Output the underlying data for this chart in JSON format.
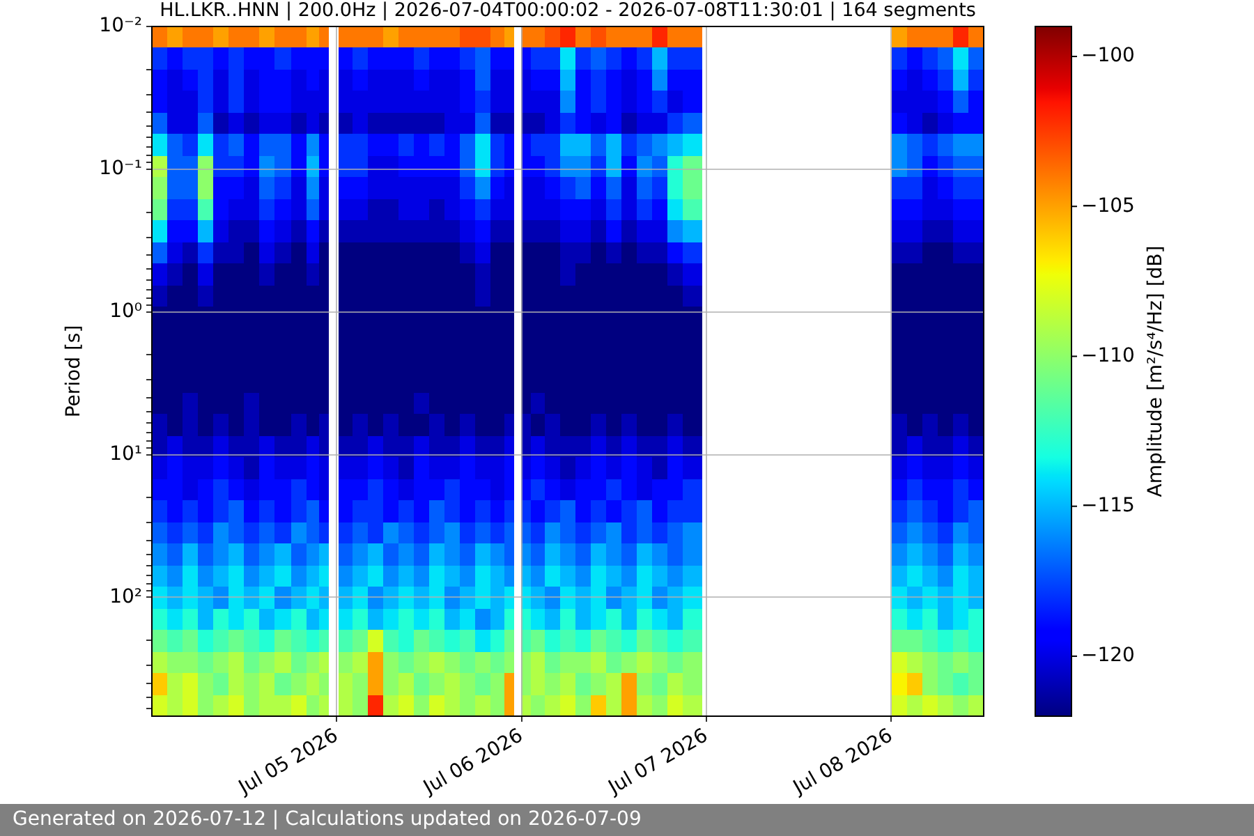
{
  "chart_data": {
    "type": "heatmap",
    "title": "HL.LKR..HNN | 200.0Hz | 2026-07-04T00:00:02 - 2026-07-08T11:30:01 | 164 segments",
    "ylabel": "Period [s]",
    "clabel": "Amplitude [m²/s⁴/Hz] [dB]",
    "annotations": [
      "Generated on 2026-07-12 | Calculations updated on 2026-07-09"
    ],
    "x": [
      "2026-07-04T01:00",
      "2026-07-04T03:00",
      "2026-07-04T05:00",
      "2026-07-04T07:00",
      "2026-07-04T09:00",
      "2026-07-04T11:00",
      "2026-07-04T13:00",
      "2026-07-04T15:00",
      "2026-07-04T17:00",
      "2026-07-04T19:00",
      "2026-07-04T21:00",
      "2026-07-04T22:30",
      "2026-07-04T23:30",
      "2026-07-05T01:00",
      "2026-07-05T03:00",
      "2026-07-05T05:00",
      "2026-07-05T07:00",
      "2026-07-05T09:00",
      "2026-07-05T11:00",
      "2026-07-05T13:00",
      "2026-07-05T15:00",
      "2026-07-05T17:00",
      "2026-07-05T19:00",
      "2026-07-05T21:00",
      "2026-07-05T22:30",
      "2026-07-05T23:30",
      "2026-07-06T00:30",
      "2026-07-06T02:00",
      "2026-07-06T04:00",
      "2026-07-06T06:00",
      "2026-07-06T08:00",
      "2026-07-06T10:00",
      "2026-07-06T12:00",
      "2026-07-06T14:00",
      "2026-07-06T16:00",
      "2026-07-06T18:00",
      "2026-07-06T20:00",
      "2026-07-06T22:00",
      "2026-07-07T01:00",
      "2026-07-07T03:00",
      "2026-07-07T05:00",
      "2026-07-07T07:00",
      "2026-07-07T09:00",
      "2026-07-07T11:00",
      "2026-07-07T13:00",
      "2026-07-07T15:00",
      "2026-07-07T17:00",
      "2026-07-07T19:00",
      "2026-07-07T21:00",
      "2026-07-07T23:00",
      "2026-07-08T01:00",
      "2026-07-08T03:00",
      "2026-07-08T05:00",
      "2026-07-08T07:00",
      "2026-07-08T09:00",
      "2026-07-08T11:00"
    ],
    "xlim": [
      "2026-07-04T00:00",
      "2026-07-08T12:00"
    ],
    "xticks": [
      {
        "value": "2026-07-05",
        "label": "Jul 05 2026"
      },
      {
        "value": "2026-07-06",
        "label": "Jul 06 2026"
      },
      {
        "value": "2026-07-07",
        "label": "Jul 07 2026"
      },
      {
        "value": "2026-07-08",
        "label": "Jul 08 2026"
      }
    ],
    "ylim": [
      680,
      0.01
    ],
    "yticks": [
      {
        "value": 0.01,
        "label": "10⁻²"
      },
      {
        "value": 0.02,
        "label": null
      },
      {
        "value": 0.03,
        "label": null
      },
      {
        "value": 0.04,
        "label": null
      },
      {
        "value": 0.05,
        "label": null
      },
      {
        "value": 0.06,
        "label": null
      },
      {
        "value": 0.07,
        "label": null
      },
      {
        "value": 0.08,
        "label": null
      },
      {
        "value": 0.09,
        "label": null
      },
      {
        "value": 0.1,
        "label": "10⁻¹"
      },
      {
        "value": 0.2,
        "label": null
      },
      {
        "value": 0.3,
        "label": null
      },
      {
        "value": 0.4,
        "label": null
      },
      {
        "value": 0.5,
        "label": null
      },
      {
        "value": 0.6,
        "label": null
      },
      {
        "value": 0.7,
        "label": null
      },
      {
        "value": 0.8,
        "label": null
      },
      {
        "value": 0.9,
        "label": null
      },
      {
        "value": 1,
        "label": "10⁰"
      },
      {
        "value": 2,
        "label": null
      },
      {
        "value": 3,
        "label": null
      },
      {
        "value": 4,
        "label": null
      },
      {
        "value": 5,
        "label": null
      },
      {
        "value": 6,
        "label": null
      },
      {
        "value": 7,
        "label": null
      },
      {
        "value": 8,
        "label": null
      },
      {
        "value": 9,
        "label": null
      },
      {
        "value": 10,
        "label": "10¹"
      },
      {
        "value": 20,
        "label": null
      },
      {
        "value": 30,
        "label": null
      },
      {
        "value": 40,
        "label": null
      },
      {
        "value": 50,
        "label": null
      },
      {
        "value": 60,
        "label": null
      },
      {
        "value": 70,
        "label": null
      },
      {
        "value": 80,
        "label": null
      },
      {
        "value": 90,
        "label": null
      },
      {
        "value": 100,
        "label": "10²"
      },
      {
        "value": 200,
        "label": null
      },
      {
        "value": 300,
        "label": null
      },
      {
        "value": 400,
        "label": null
      },
      {
        "value": 500,
        "label": null
      },
      {
        "value": 600,
        "label": null
      }
    ],
    "log": "y",
    "grid": true,
    "clim": [
      -122,
      -99
    ],
    "cticks": [
      -120,
      -115,
      -110,
      -105,
      -100
    ],
    "cells": [
      [
        -104,
        -105,
        -104,
        -104,
        -105,
        -104,
        -104,
        -105,
        -104,
        -104,
        -105,
        -104,
        null,
        -104,
        -104,
        -104,
        -105,
        -104,
        -104,
        -104,
        -104,
        -103,
        -103,
        -104,
        -105,
        null,
        -104,
        -104,
        -103,
        -102,
        -104,
        -103,
        -104,
        -104,
        -104,
        -102,
        -104,
        -104,
        null,
        null,
        null,
        null,
        null,
        null,
        null,
        null,
        null,
        null,
        null,
        null,
        -105,
        -104,
        -104,
        -104,
        -102,
        -104
      ],
      [
        -118,
        -119,
        -118,
        -118,
        -119,
        -118,
        -119,
        -119,
        -118,
        -119,
        -119,
        -119,
        null,
        -119,
        -118,
        -119,
        -119,
        -119,
        -118,
        -119,
        -119,
        -118,
        -117,
        -119,
        -119,
        null,
        -119,
        -118,
        -118,
        -114,
        -118,
        -117,
        -118,
        -119,
        -118,
        -115,
        -118,
        -118,
        null,
        null,
        null,
        null,
        null,
        null,
        null,
        null,
        null,
        null,
        null,
        null,
        -118,
        -119,
        -118,
        -117,
        -114,
        -117
      ],
      [
        -119,
        -120,
        -119,
        -118,
        -120,
        -118,
        -120,
        -119,
        -119,
        -120,
        -119,
        -120,
        null,
        -120,
        -119,
        -120,
        -120,
        -120,
        -119,
        -120,
        -120,
        -119,
        -117,
        -120,
        -120,
        null,
        -120,
        -119,
        -119,
        -115,
        -119,
        -118,
        -119,
        -120,
        -119,
        -116,
        -119,
        -119,
        null,
        null,
        null,
        null,
        null,
        null,
        null,
        null,
        null,
        null,
        null,
        null,
        -119,
        -120,
        -119,
        -118,
        -115,
        -118
      ],
      [
        -119,
        -120,
        -120,
        -118,
        -120,
        -118,
        -120,
        -119,
        -119,
        -120,
        -120,
        -120,
        null,
        -120,
        -120,
        -120,
        -120,
        -120,
        -120,
        -120,
        -120,
        -119,
        -118,
        -120,
        -120,
        null,
        -120,
        -120,
        -120,
        -116,
        -119,
        -118,
        -119,
        -120,
        -119,
        -118,
        -120,
        -119,
        null,
        null,
        null,
        null,
        null,
        null,
        null,
        null,
        null,
        null,
        null,
        null,
        -120,
        -120,
        -120,
        -119,
        -117,
        -119
      ],
      [
        -117,
        -120,
        -120,
        -117,
        -121,
        -120,
        -121,
        -120,
        -120,
        -121,
        -120,
        -121,
        null,
        -121,
        -120,
        -121,
        -121,
        -121,
        -121,
        -121,
        -120,
        -120,
        -117,
        -121,
        -121,
        null,
        -121,
        -121,
        -120,
        -118,
        -119,
        -120,
        -119,
        -121,
        -120,
        -120,
        -118,
        -117,
        null,
        null,
        null,
        null,
        null,
        null,
        null,
        null,
        null,
        null,
        null,
        null,
        -119,
        -120,
        -121,
        -120,
        -119,
        -119
      ],
      [
        -114,
        -117,
        -118,
        -114,
        -118,
        -117,
        -119,
        -117,
        -117,
        -119,
        -116,
        -119,
        null,
        -118,
        -118,
        -119,
        -119,
        -118,
        -119,
        -118,
        -119,
        -117,
        -114,
        -118,
        -119,
        null,
        -119,
        -118,
        -118,
        -115,
        -115,
        -117,
        -115,
        -118,
        -117,
        -116,
        -115,
        -114,
        null,
        null,
        null,
        null,
        null,
        null,
        null,
        null,
        null,
        null,
        null,
        null,
        -116,
        -117,
        -118,
        -117,
        -116,
        -116
      ],
      [
        -109,
        -117,
        -117,
        -110,
        -118,
        -118,
        -119,
        -116,
        -117,
        -119,
        -115,
        -119,
        null,
        -118,
        -118,
        -120,
        -120,
        -119,
        -119,
        -119,
        -119,
        -117,
        -114,
        -118,
        -119,
        null,
        -119,
        -119,
        -118,
        -116,
        -116,
        -118,
        -115,
        -119,
        -116,
        -117,
        -113,
        -111,
        null,
        null,
        null,
        null,
        null,
        null,
        null,
        null,
        null,
        null,
        null,
        null,
        -116,
        -117,
        -119,
        -118,
        -117,
        -117
      ],
      [
        -110,
        -117,
        -117,
        -110,
        -119,
        -119,
        -120,
        -117,
        -118,
        -120,
        -116,
        -120,
        null,
        -119,
        -119,
        -120,
        -120,
        -120,
        -120,
        -120,
        -120,
        -118,
        -116,
        -119,
        -120,
        null,
        -120,
        -120,
        -119,
        -118,
        -117,
        -119,
        -117,
        -120,
        -117,
        -118,
        -113,
        -111,
        null,
        null,
        null,
        null,
        null,
        null,
        null,
        null,
        null,
        null,
        null,
        null,
        -118,
        -118,
        -120,
        -119,
        -118,
        -118
      ],
      [
        -111,
        -118,
        -118,
        -112,
        -119,
        -120,
        -120,
        -118,
        -119,
        -120,
        -117,
        -120,
        null,
        -120,
        -120,
        -121,
        -121,
        -120,
        -120,
        -121,
        -120,
        -119,
        -118,
        -120,
        -120,
        null,
        -120,
        -120,
        -120,
        -119,
        -119,
        -120,
        -118,
        -120,
        -118,
        -119,
        -114,
        -112,
        null,
        null,
        null,
        null,
        null,
        null,
        null,
        null,
        null,
        null,
        null,
        null,
        -119,
        -119,
        -120,
        -120,
        -119,
        -119
      ],
      [
        -114,
        -119,
        -119,
        -115,
        -120,
        -121,
        -121,
        -119,
        -120,
        -121,
        -119,
        -121,
        null,
        -121,
        -121,
        -121,
        -121,
        -121,
        -121,
        -121,
        -121,
        -120,
        -119,
        -121,
        -121,
        null,
        -121,
        -121,
        -121,
        -120,
        -120,
        -121,
        -119,
        -121,
        -120,
        -120,
        -116,
        -115,
        null,
        null,
        null,
        null,
        null,
        null,
        null,
        null,
        null,
        null,
        null,
        null,
        -120,
        -120,
        -121,
        -121,
        -120,
        -120
      ],
      [
        -117,
        -120,
        -121,
        -118,
        -121,
        -121,
        -122,
        -120,
        -121,
        -122,
        -120,
        -122,
        null,
        -122,
        -122,
        -122,
        -122,
        -122,
        -122,
        -122,
        -122,
        -121,
        -120,
        -122,
        -122,
        null,
        -122,
        -122,
        -122,
        -121,
        -121,
        -122,
        -121,
        -122,
        -121,
        -121,
        -119,
        -118,
        null,
        null,
        null,
        null,
        null,
        null,
        null,
        null,
        null,
        null,
        null,
        null,
        -121,
        -121,
        -122,
        -122,
        -121,
        -121
      ],
      [
        -120,
        -121,
        -122,
        -120,
        -122,
        -122,
        -122,
        -121,
        -122,
        -122,
        -121,
        -122,
        null,
        -122,
        -122,
        -122,
        -122,
        -122,
        -122,
        -122,
        -122,
        -122,
        -121,
        -122,
        -122,
        null,
        -122,
        -122,
        -122,
        -121,
        -122,
        -122,
        -122,
        -122,
        -122,
        -122,
        -121,
        -120,
        null,
        null,
        null,
        null,
        null,
        null,
        null,
        null,
        null,
        null,
        null,
        null,
        -122,
        -122,
        -122,
        -122,
        -122,
        -122
      ],
      [
        -121,
        -122,
        -122,
        -121,
        -122,
        -122,
        -122,
        -122,
        -122,
        -122,
        -122,
        -122,
        null,
        -122,
        -122,
        -122,
        -122,
        -122,
        -122,
        -122,
        -122,
        -122,
        -121,
        -122,
        -122,
        null,
        -122,
        -122,
        -122,
        -122,
        -122,
        -122,
        -122,
        -122,
        -122,
        -122,
        -122,
        -121,
        null,
        null,
        null,
        null,
        null,
        null,
        null,
        null,
        null,
        null,
        null,
        null,
        -122,
        -122,
        -122,
        -122,
        -122,
        -122
      ],
      [
        -122,
        -122,
        -122,
        -122,
        -122,
        -122,
        -122,
        -122,
        -122,
        -122,
        -122,
        -122,
        null,
        -122,
        -122,
        -122,
        -122,
        -122,
        -122,
        -122,
        -122,
        -122,
        -122,
        -122,
        -122,
        null,
        -122,
        -122,
        -122,
        -122,
        -122,
        -122,
        -122,
        -122,
        -122,
        -122,
        -122,
        -122,
        null,
        null,
        null,
        null,
        null,
        null,
        null,
        null,
        null,
        null,
        null,
        null,
        -122,
        -122,
        -122,
        -122,
        -122,
        -122
      ],
      [
        -122,
        -122,
        -122,
        -122,
        -122,
        -122,
        -122,
        -122,
        -122,
        -122,
        -122,
        -122,
        null,
        -122,
        -122,
        -122,
        -122,
        -122,
        -122,
        -122,
        -122,
        -122,
        -122,
        -122,
        -122,
        null,
        -122,
        -122,
        -122,
        -122,
        -122,
        -122,
        -122,
        -122,
        -122,
        -122,
        -122,
        -122,
        null,
        null,
        null,
        null,
        null,
        null,
        null,
        null,
        null,
        null,
        null,
        null,
        -122,
        -122,
        -122,
        -122,
        -122,
        -122
      ],
      [
        -122,
        -122,
        -122,
        -122,
        -122,
        -122,
        -122,
        -122,
        -122,
        -122,
        -122,
        -122,
        null,
        -122,
        -122,
        -122,
        -122,
        -122,
        -122,
        -122,
        -122,
        -122,
        -122,
        -122,
        -122,
        null,
        -122,
        -122,
        -122,
        -122,
        -122,
        -122,
        -122,
        -122,
        -122,
        -122,
        -122,
        -122,
        null,
        null,
        null,
        null,
        null,
        null,
        null,
        null,
        null,
        null,
        null,
        null,
        -122,
        -122,
        -122,
        -122,
        -122,
        -122
      ],
      [
        -122,
        -122,
        -122,
        -122,
        -122,
        -122,
        -122,
        -122,
        -122,
        -122,
        -122,
        -122,
        null,
        -122,
        -122,
        -122,
        -122,
        -122,
        -122,
        -122,
        -122,
        -122,
        -122,
        -122,
        -122,
        null,
        -122,
        -122,
        -122,
        -122,
        -122,
        -122,
        -122,
        -122,
        -122,
        -122,
        -122,
        -122,
        null,
        null,
        null,
        null,
        null,
        null,
        null,
        null,
        null,
        null,
        null,
        null,
        -122,
        -122,
        -122,
        -122,
        -122,
        -122
      ],
      [
        -122,
        -122,
        -121,
        -122,
        -122,
        -122,
        -121,
        -122,
        -122,
        -122,
        -122,
        -122,
        null,
        -122,
        -122,
        -122,
        -122,
        -122,
        -121,
        -122,
        -122,
        -122,
        -122,
        -122,
        -122,
        null,
        -122,
        -121,
        -122,
        -122,
        -122,
        -122,
        -122,
        -122,
        -122,
        -122,
        -122,
        -122,
        null,
        null,
        null,
        null,
        null,
        null,
        null,
        null,
        null,
        null,
        null,
        null,
        -122,
        -122,
        -122,
        -122,
        -122,
        -122
      ],
      [
        -121,
        -122,
        -121,
        -122,
        -121,
        -122,
        -121,
        -122,
        -122,
        -121,
        -122,
        -121,
        null,
        -122,
        -121,
        -122,
        -121,
        -122,
        -122,
        -121,
        -122,
        -121,
        -122,
        -122,
        -121,
        null,
        -121,
        -122,
        -121,
        -122,
        -122,
        -121,
        -122,
        -121,
        -122,
        -122,
        -121,
        -122,
        null,
        null,
        null,
        null,
        null,
        null,
        null,
        null,
        null,
        null,
        null,
        null,
        -121,
        -122,
        -121,
        -122,
        -121,
        -122
      ],
      [
        -121,
        -120,
        -121,
        -121,
        -120,
        -121,
        -121,
        -120,
        -121,
        -121,
        -120,
        -121,
        null,
        -121,
        -121,
        -120,
        -121,
        -121,
        -120,
        -121,
        -121,
        -120,
        -121,
        -121,
        -120,
        null,
        -121,
        -120,
        -121,
        -121,
        -121,
        -120,
        -121,
        -120,
        -121,
        -121,
        -120,
        -121,
        null,
        null,
        null,
        null,
        null,
        null,
        null,
        null,
        null,
        null,
        null,
        null,
        -121,
        -120,
        -121,
        -121,
        -120,
        -121
      ],
      [
        -120,
        -119,
        -120,
        -120,
        -119,
        -120,
        -121,
        -119,
        -120,
        -120,
        -119,
        -120,
        null,
        -120,
        -120,
        -119,
        -120,
        -121,
        -119,
        -120,
        -120,
        -119,
        -120,
        -120,
        -119,
        null,
        -120,
        -119,
        -120,
        -121,
        -120,
        -119,
        -120,
        -119,
        -120,
        -121,
        -119,
        -120,
        null,
        null,
        null,
        null,
        null,
        null,
        null,
        null,
        null,
        null,
        null,
        null,
        -120,
        -119,
        -120,
        -120,
        -119,
        -120
      ],
      [
        -119,
        -119,
        -120,
        -119,
        -118,
        -119,
        -120,
        -119,
        -119,
        -118,
        -119,
        -120,
        null,
        -119,
        -119,
        -118,
        -119,
        -120,
        -119,
        -119,
        -118,
        -119,
        -119,
        -120,
        -119,
        null,
        -119,
        -118,
        -119,
        -120,
        -119,
        -119,
        -118,
        -119,
        -120,
        -119,
        -119,
        -118,
        null,
        null,
        null,
        null,
        null,
        null,
        null,
        null,
        null,
        null,
        null,
        null,
        -119,
        -118,
        -119,
        -119,
        -118,
        -119
      ],
      [
        -118,
        -119,
        -118,
        -119,
        -118,
        -117,
        -119,
        -118,
        -119,
        -118,
        -117,
        -119,
        null,
        -119,
        -118,
        -118,
        -119,
        -118,
        -119,
        -117,
        -118,
        -119,
        -118,
        -119,
        -118,
        null,
        -118,
        -119,
        -118,
        -117,
        -119,
        -118,
        -119,
        -118,
        -117,
        -119,
        -118,
        -118,
        null,
        null,
        null,
        null,
        null,
        null,
        null,
        null,
        null,
        null,
        null,
        null,
        -118,
        -117,
        -118,
        -119,
        -118,
        -117
      ],
      [
        -117,
        -118,
        -117,
        -118,
        -116,
        -117,
        -118,
        -117,
        -118,
        -116,
        -117,
        -118,
        null,
        -118,
        -117,
        -118,
        -116,
        -117,
        -118,
        -117,
        -116,
        -118,
        -117,
        -118,
        -117,
        null,
        -117,
        -118,
        -116,
        -117,
        -118,
        -117,
        -116,
        -118,
        -117,
        -118,
        -117,
        -116,
        null,
        null,
        null,
        null,
        null,
        null,
        null,
        null,
        null,
        null,
        null,
        null,
        -117,
        -116,
        -117,
        -118,
        -116,
        -117
      ],
      [
        -116,
        -117,
        -115,
        -117,
        -116,
        -115,
        -117,
        -116,
        -115,
        -117,
        -116,
        -115,
        null,
        -117,
        -116,
        -115,
        -117,
        -116,
        -117,
        -115,
        -116,
        -117,
        -115,
        -116,
        -117,
        null,
        -116,
        -117,
        -115,
        -116,
        -117,
        -115,
        -116,
        -117,
        -115,
        -116,
        -117,
        -116,
        null,
        null,
        null,
        null,
        null,
        null,
        null,
        null,
        null,
        null,
        null,
        null,
        -116,
        -115,
        -116,
        -117,
        -115,
        -116
      ],
      [
        -115,
        -116,
        -114,
        -116,
        -115,
        -114,
        -116,
        -115,
        -114,
        -116,
        -115,
        -114,
        null,
        -116,
        -115,
        -114,
        -116,
        -115,
        -116,
        -114,
        -115,
        -116,
        -114,
        -115,
        -116,
        null,
        -115,
        -116,
        -114,
        -115,
        -116,
        -114,
        -115,
        -116,
        -114,
        -115,
        -116,
        -115,
        null,
        null,
        null,
        null,
        null,
        null,
        null,
        null,
        null,
        null,
        null,
        null,
        -115,
        -114,
        -115,
        -116,
        -114,
        -115
      ],
      [
        -114,
        -115,
        -114,
        -115,
        -116,
        -114,
        -115,
        -114,
        -116,
        -115,
        -114,
        -115,
        null,
        -115,
        -114,
        -116,
        -115,
        -114,
        -115,
        -114,
        -116,
        -115,
        -114,
        -115,
        -114,
        null,
        -114,
        -115,
        -116,
        -114,
        -115,
        -114,
        -116,
        -115,
        -114,
        -116,
        -115,
        -114,
        null,
        null,
        null,
        null,
        null,
        null,
        null,
        null,
        null,
        null,
        null,
        null,
        -114,
        -115,
        -114,
        -115,
        -114,
        -115
      ],
      [
        -113,
        -114,
        -113,
        -115,
        -113,
        -114,
        -113,
        -115,
        -114,
        -113,
        -115,
        -114,
        null,
        -114,
        -113,
        -115,
        -114,
        -113,
        -114,
        -113,
        -115,
        -114,
        -116,
        -115,
        -113,
        null,
        -113,
        -114,
        -115,
        -113,
        -115,
        -114,
        -113,
        -115,
        -113,
        -114,
        -115,
        -113,
        null,
        null,
        null,
        null,
        null,
        null,
        null,
        null,
        null,
        null,
        null,
        null,
        -113,
        -114,
        -113,
        -115,
        -114,
        -113
      ],
      [
        -111,
        -112,
        -111,
        -113,
        -112,
        -111,
        -112,
        -113,
        -111,
        -112,
        -113,
        -112,
        null,
        -112,
        -111,
        -108,
        -112,
        -113,
        -111,
        -112,
        -113,
        -112,
        -114,
        -113,
        -111,
        null,
        -112,
        -111,
        -113,
        -112,
        -113,
        -111,
        -112,
        -113,
        -111,
        -112,
        -113,
        -112,
        null,
        null,
        null,
        null,
        null,
        null,
        null,
        null,
        null,
        null,
        null,
        null,
        -111,
        -111,
        -112,
        -113,
        -112,
        -113
      ],
      [
        -109,
        -110,
        -110,
        -111,
        -110,
        -109,
        -111,
        -110,
        -109,
        -111,
        -110,
        -109,
        null,
        -110,
        -109,
        -105,
        -110,
        -111,
        -110,
        -109,
        -110,
        -111,
        -110,
        -111,
        -110,
        null,
        -110,
        -109,
        -111,
        -110,
        -110,
        -109,
        -111,
        -110,
        -109,
        -110,
        -111,
        -110,
        null,
        null,
        null,
        null,
        null,
        null,
        null,
        null,
        null,
        null,
        null,
        null,
        -108,
        -109,
        -110,
        -111,
        -110,
        -111
      ],
      [
        -106,
        -109,
        -108,
        -110,
        -111,
        -109,
        -110,
        -109,
        -111,
        -110,
        -109,
        -110,
        null,
        -109,
        -110,
        -105,
        -110,
        -109,
        -111,
        -110,
        -109,
        -110,
        -111,
        -110,
        -105,
        null,
        -110,
        -109,
        -110,
        -109,
        -111,
        -110,
        -109,
        -105,
        -110,
        -111,
        -109,
        -110,
        null,
        null,
        null,
        null,
        null,
        null,
        null,
        null,
        null,
        null,
        null,
        null,
        -107,
        -106,
        -110,
        -111,
        -112,
        -111
      ],
      [
        -108,
        -109,
        -108,
        -110,
        -109,
        -108,
        -110,
        -109,
        -109,
        -108,
        -110,
        -109,
        null,
        -109,
        -110,
        -102,
        -109,
        -108,
        -110,
        -108,
        -109,
        -110,
        -109,
        -110,
        -105,
        null,
        -109,
        -110,
        -109,
        -108,
        -110,
        -106,
        -109,
        -105,
        -109,
        -110,
        -108,
        -109,
        null,
        null,
        null,
        null,
        null,
        null,
        null,
        null,
        null,
        null,
        null,
        null,
        -108,
        -109,
        -108,
        -109,
        -110,
        -109
      ]
    ]
  }
}
